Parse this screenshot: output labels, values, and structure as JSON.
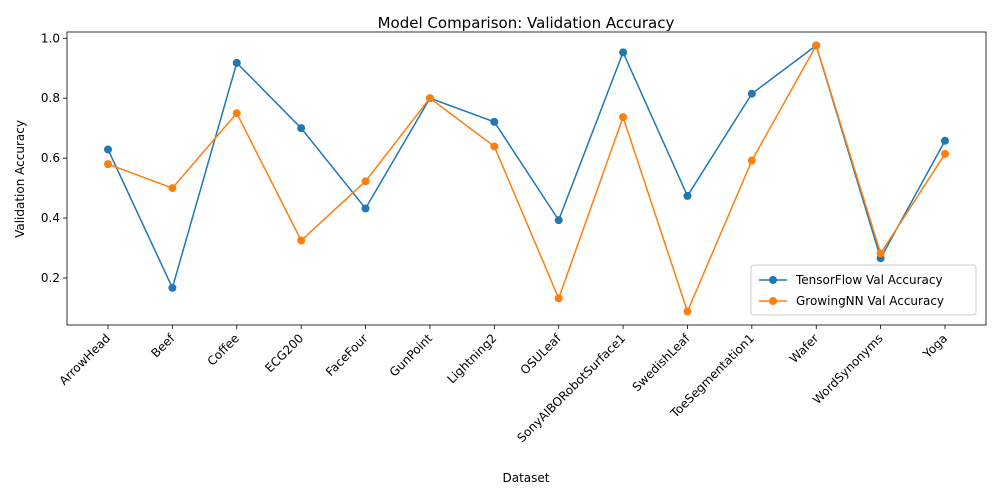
{
  "chart_data": {
    "type": "line",
    "title": "Model Comparison: Validation Accuracy",
    "xlabel": "Dataset",
    "ylabel": "Validation Accuracy",
    "categories": [
      "ArrowHead",
      "Beef",
      "Coffee",
      "ECG200",
      "FaceFour",
      "GunPoint",
      "Lightning2",
      "OSULeaf",
      "SonyAIBORobotSurface1",
      "SwedishLeaf",
      "ToeSegmentation1",
      "Wafer",
      "WordSynonyms",
      "Yoga"
    ],
    "series": [
      {
        "name": "TensorFlow Val Accuracy",
        "color": "#1f77b4",
        "values": [
          0.629,
          0.167,
          0.918,
          0.7,
          0.432,
          0.8,
          0.721,
          0.393,
          0.953,
          0.474,
          0.815,
          0.976,
          0.266,
          0.658
        ]
      },
      {
        "name": "GrowingNN Val Accuracy",
        "color": "#ff7f0e",
        "values": [
          0.58,
          0.5,
          0.75,
          0.325,
          0.523,
          0.8,
          0.639,
          0.132,
          0.737,
          0.088,
          0.592,
          0.976,
          0.282,
          0.614
        ]
      }
    ],
    "yticks": [
      "0.2",
      "0.4",
      "0.6",
      "0.8",
      "1.0"
    ],
    "ylim": [
      0.043,
      1.021
    ],
    "grid": false,
    "legend_position": "bottom-right",
    "marker": "circle"
  }
}
